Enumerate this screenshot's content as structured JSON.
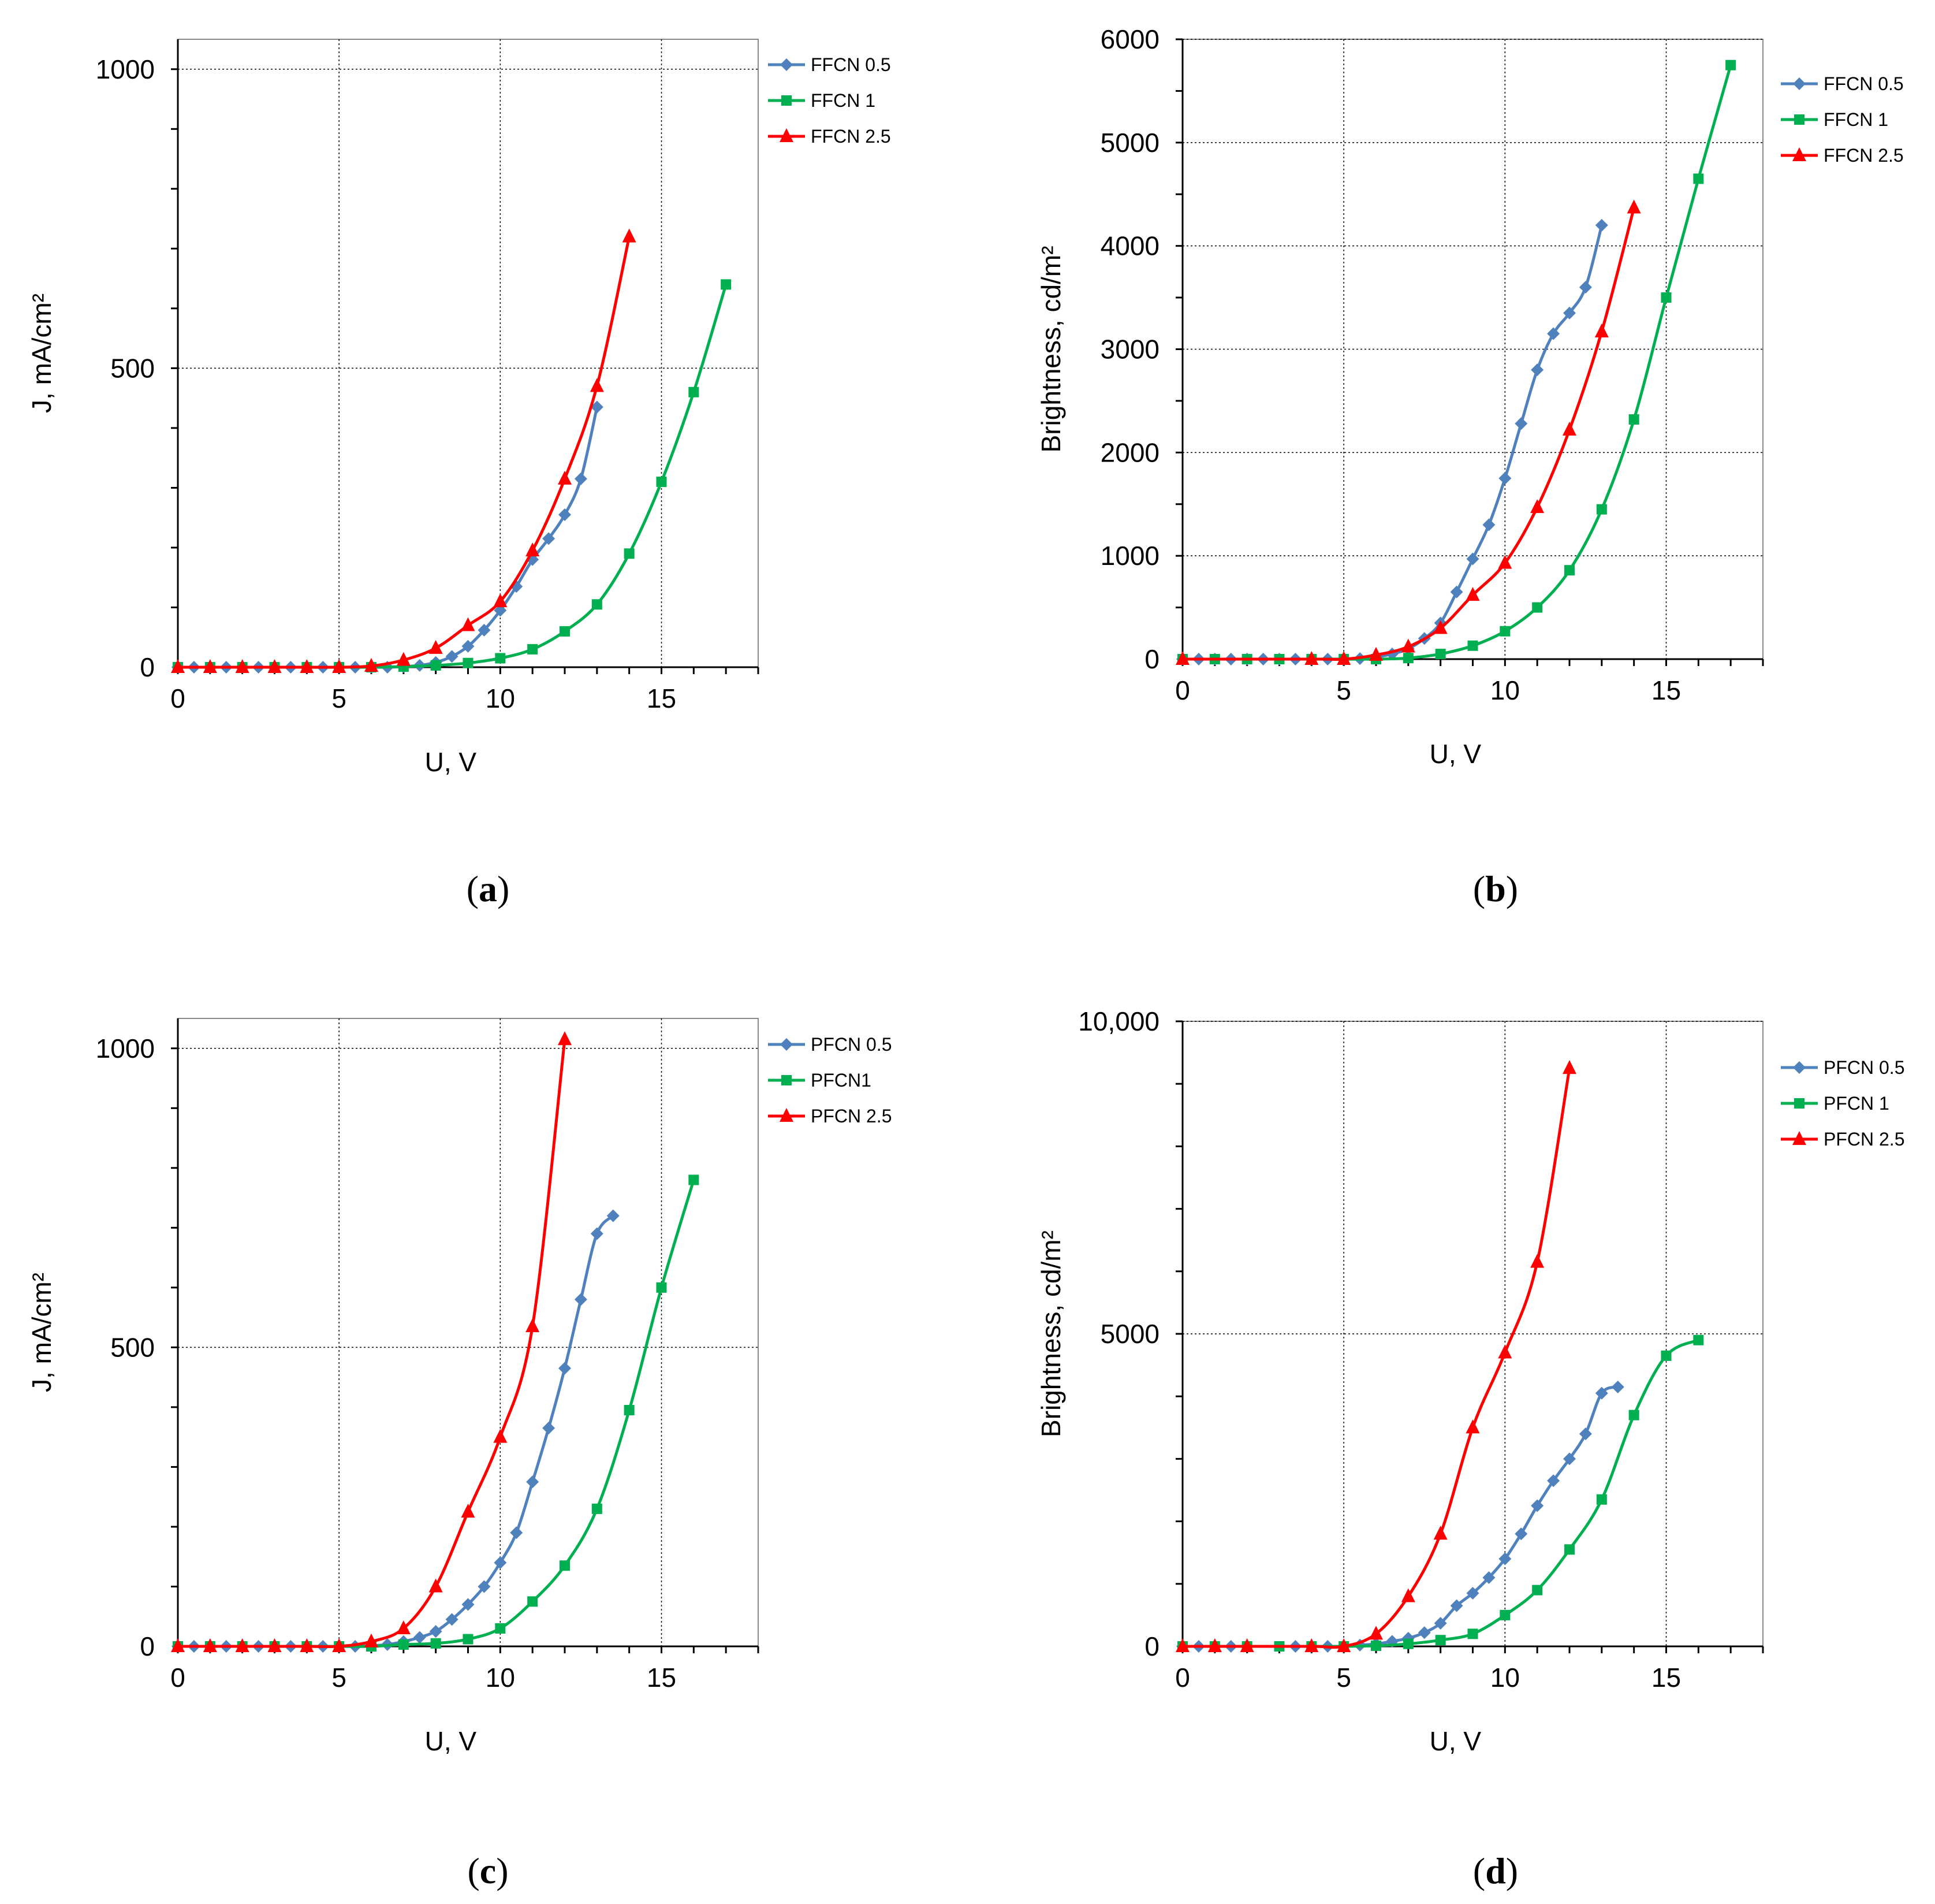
{
  "chart_data": [
    {
      "type": "line",
      "panel_label": "a",
      "xlabel": "U, V",
      "ylabel": "J, mA/cm²",
      "xlim": [
        0,
        18
      ],
      "ylim": [
        0,
        1050
      ],
      "xticks": [
        0,
        5,
        10,
        15
      ],
      "yticks": [
        0,
        500,
        1000
      ],
      "ytick_labels": [
        "0",
        "500",
        "1000"
      ],
      "yminor_step": 100,
      "legend_position": "top-right, outside plot",
      "series": [
        {
          "name": "FFCN 0.5",
          "color": "#4F81BD",
          "marker": "diamond",
          "x": [
            0,
            0.5,
            1,
            1.5,
            2,
            2.5,
            3,
            3.5,
            4,
            4.5,
            5,
            5.5,
            6,
            6.5,
            7,
            7.5,
            8,
            8.5,
            9,
            9.5,
            10,
            10.5,
            11,
            11.5,
            12,
            12.5,
            13
          ],
          "y": [
            0,
            0,
            0,
            0,
            0,
            0,
            0,
            0,
            0,
            0,
            0,
            0,
            0,
            0,
            1,
            3,
            8,
            18,
            35,
            62,
            95,
            135,
            180,
            215,
            255,
            315,
            435
          ]
        },
        {
          "name": "FFCN 1",
          "color": "#00B050",
          "marker": "square",
          "x": [
            0,
            1,
            2,
            3,
            4,
            5,
            6,
            7,
            8,
            9,
            10,
            11,
            12,
            13,
            14,
            15,
            16,
            17
          ],
          "y": [
            0,
            0,
            0,
            0,
            0,
            0,
            0,
            1,
            3,
            7,
            15,
            30,
            60,
            105,
            190,
            310,
            460,
            640
          ]
        },
        {
          "name": "FFCN 2.5",
          "color": "#FF0000",
          "marker": "triangle",
          "x": [
            0,
            1,
            2,
            3,
            4,
            5,
            6,
            7,
            8,
            9,
            10,
            11,
            12,
            13,
            14
          ],
          "y": [
            0,
            0,
            0,
            0,
            0,
            0,
            2,
            12,
            32,
            70,
            110,
            195,
            315,
            470,
            720
          ]
        }
      ]
    },
    {
      "type": "line",
      "panel_label": "b",
      "xlabel": "U, V",
      "ylabel": "Brightness,  cd/m²",
      "xlim": [
        0,
        18
      ],
      "ylim": [
        0,
        6000
      ],
      "xticks": [
        0,
        5,
        10,
        15
      ],
      "yticks": [
        0,
        1000,
        2000,
        3000,
        4000,
        5000,
        6000
      ],
      "ytick_labels": [
        "0",
        "1000",
        "2000",
        "3000",
        "4000",
        "5000",
        "6000"
      ],
      "yminor_step": 500,
      "legend_position": "top-right, outside plot",
      "series": [
        {
          "name": "FFCN 0.5",
          "color": "#4F81BD",
          "marker": "diamond",
          "x": [
            0,
            0.5,
            1,
            1.5,
            2,
            2.5,
            3,
            3.5,
            4,
            4.5,
            5,
            5.5,
            6,
            6.5,
            7,
            7.5,
            8,
            8.5,
            9,
            9.5,
            10,
            10.5,
            11,
            11.5,
            12,
            12.5,
            13
          ],
          "y": [
            0,
            0,
            0,
            0,
            0,
            0,
            0,
            0,
            0,
            0,
            0,
            5,
            20,
            50,
            100,
            200,
            350,
            650,
            970,
            1300,
            1750,
            2280,
            2800,
            3150,
            3350,
            3600,
            4200
          ]
        },
        {
          "name": "FFCN 1",
          "color": "#00B050",
          "marker": "square",
          "x": [
            0,
            1,
            2,
            3,
            4,
            5,
            6,
            7,
            8,
            9,
            10,
            11,
            12,
            13,
            14,
            15,
            16,
            17
          ],
          "y": [
            0,
            0,
            0,
            0,
            0,
            0,
            0,
            10,
            50,
            130,
            270,
            500,
            860,
            1450,
            2320,
            3500,
            4650,
            5750
          ]
        },
        {
          "name": "FFCN 2.5",
          "color": "#FF0000",
          "marker": "triangle",
          "x": [
            0,
            4,
            5,
            6,
            7,
            8,
            9,
            10,
            11,
            12,
            13,
            14
          ],
          "y": [
            0,
            0,
            0,
            40,
            120,
            300,
            620,
            930,
            1470,
            2220,
            3170,
            4370
          ]
        }
      ]
    },
    {
      "type": "line",
      "panel_label": "c",
      "xlabel": "U, V",
      "ylabel": "J, mA/cm²",
      "xlim": [
        0,
        18
      ],
      "ylim": [
        0,
        1050
      ],
      "xticks": [
        0,
        5,
        10,
        15
      ],
      "yticks": [
        0,
        500,
        1000
      ],
      "ytick_labels": [
        "0",
        "500",
        "1000"
      ],
      "yminor_step": 100,
      "legend_position": "top-right, outside plot",
      "series": [
        {
          "name": "PFCN 0.5",
          "color": "#4F81BD",
          "marker": "diamond",
          "x": [
            0,
            0.5,
            1,
            1.5,
            2,
            2.5,
            3,
            3.5,
            4,
            4.5,
            5,
            5.5,
            6,
            6.5,
            7,
            7.5,
            8,
            8.5,
            9,
            9.5,
            10,
            10.5,
            11,
            11.5,
            12,
            12.5,
            13,
            13.5
          ],
          "y": [
            0,
            0,
            0,
            0,
            0,
            0,
            0,
            0,
            0,
            0,
            0,
            0,
            1,
            3,
            8,
            15,
            25,
            45,
            70,
            100,
            140,
            190,
            275,
            365,
            465,
            580,
            690,
            720
          ]
        },
        {
          "name": "PFCN1",
          "color": "#00B050",
          "marker": "square",
          "x": [
            0,
            1,
            2,
            3,
            4,
            5,
            6,
            7,
            8,
            9,
            10,
            11,
            12,
            13,
            14,
            15,
            16
          ],
          "y": [
            0,
            0,
            0,
            0,
            0,
            0,
            0,
            3,
            5,
            12,
            30,
            75,
            135,
            230,
            395,
            600,
            780
          ]
        },
        {
          "name": "PFCN 2.5",
          "color": "#FF0000",
          "marker": "triangle",
          "x": [
            0,
            1,
            2,
            3,
            4,
            5,
            6,
            7,
            8,
            9,
            10,
            11,
            12
          ],
          "y": [
            0,
            0,
            0,
            0,
            0,
            0,
            8,
            30,
            100,
            225,
            350,
            535,
            1015
          ]
        }
      ]
    },
    {
      "type": "line",
      "panel_label": "d",
      "xlabel": "U, V",
      "ylabel": "Brightness,  cd/m²",
      "xlim": [
        0,
        18
      ],
      "ylim": [
        0,
        10000
      ],
      "xticks": [
        0,
        5,
        10,
        15
      ],
      "yticks": [
        0,
        5000,
        10000
      ],
      "ytick_labels": [
        "0",
        "5000",
        "10,000"
      ],
      "yminor_step": 1000,
      "legend_position": "top-right, outside plot",
      "series": [
        {
          "name": "PFCN 0.5",
          "color": "#4F81BD",
          "marker": "diamond",
          "x": [
            0,
            0.5,
            1,
            1.5,
            3.5,
            4,
            4.5,
            5,
            5.5,
            6,
            6.5,
            7,
            7.5,
            8,
            8.5,
            9,
            9.5,
            10,
            10.5,
            11,
            11.5,
            12,
            12.5,
            13,
            13.5
          ],
          "y": [
            0,
            0,
            0,
            0,
            0,
            0,
            0,
            0,
            20,
            40,
            80,
            130,
            220,
            370,
            650,
            850,
            1100,
            1400,
            1800,
            2250,
            2650,
            3000,
            3400,
            4050,
            4150
          ]
        },
        {
          "name": "PFCN 1",
          "color": "#00B050",
          "marker": "square",
          "x": [
            0,
            1,
            2,
            3,
            4,
            5,
            6,
            7,
            8,
            9,
            10,
            11,
            12,
            13,
            14,
            15,
            16
          ],
          "y": [
            0,
            0,
            0,
            0,
            0,
            0,
            10,
            40,
            100,
            200,
            500,
            900,
            1550,
            2350,
            3700,
            4650,
            4900
          ]
        },
        {
          "name": "PFCN 2.5",
          "color": "#FF0000",
          "marker": "triangle",
          "x": [
            0,
            1,
            2,
            4,
            5,
            6,
            7,
            8,
            9,
            10,
            11,
            12
          ],
          "y": [
            0,
            0,
            0,
            0,
            0,
            200,
            800,
            1800,
            3500,
            4700,
            6150,
            9250
          ]
        }
      ]
    }
  ]
}
